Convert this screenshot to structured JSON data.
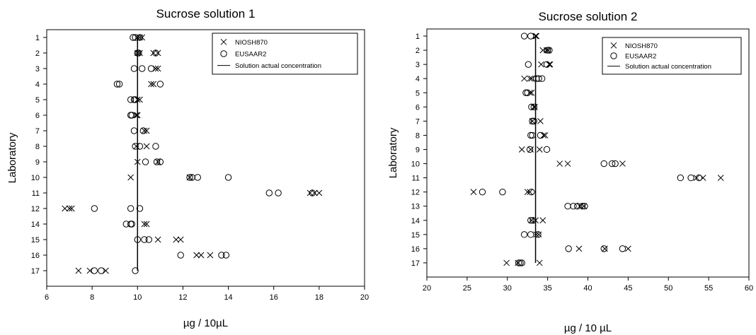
{
  "chart_data": [
    {
      "type": "scatter",
      "title": "Sucrose solution 1",
      "xlabel": "µg / 10µL",
      "ylabel": "Laboratory",
      "xlim": [
        6,
        20
      ],
      "xticks": [
        "6",
        "8",
        "10",
        "12",
        "14",
        "16",
        "18",
        "20"
      ],
      "categories": [
        "1",
        "2",
        "3",
        "4",
        "5",
        "6",
        "7",
        "8",
        "9",
        "10",
        "11",
        "12",
        "14",
        "15",
        "16",
        "17"
      ],
      "grid": false,
      "legend_position": "top-right",
      "reference": {
        "name": "Solution actual concentration",
        "value": 10.0
      },
      "series": [
        {
          "name": "NIOSH870",
          "marker": "x",
          "points": [
            [
              "1",
              10.0
            ],
            [
              "1",
              10.1
            ],
            [
              "1",
              10.2
            ],
            [
              "2",
              10.7
            ],
            [
              "2",
              10.9
            ],
            [
              "2",
              10.1
            ],
            [
              "2",
              10.0
            ],
            [
              "3",
              10.8
            ],
            [
              "3",
              10.9
            ],
            [
              "4",
              10.6
            ],
            [
              "4",
              10.7
            ],
            [
              "5",
              10.1
            ],
            [
              "5",
              10.0
            ],
            [
              "6",
              10.0
            ],
            [
              "6",
              9.95
            ],
            [
              "7",
              10.3
            ],
            [
              "7",
              10.4
            ],
            [
              "8",
              9.95
            ],
            [
              "8",
              10.4
            ],
            [
              "9",
              10.0
            ],
            [
              "9",
              10.9
            ],
            [
              "10",
              9.7
            ],
            [
              "10",
              12.3
            ],
            [
              "11",
              17.6
            ],
            [
              "11",
              17.8
            ],
            [
              "11",
              18.0
            ],
            [
              "12",
              6.8
            ],
            [
              "12",
              7.0
            ],
            [
              "12",
              7.1
            ],
            [
              "14",
              10.3
            ],
            [
              "14",
              10.4
            ],
            [
              "15",
              10.9
            ],
            [
              "15",
              11.7
            ],
            [
              "15",
              11.9
            ],
            [
              "16",
              12.6
            ],
            [
              "16",
              12.8
            ],
            [
              "16",
              13.2
            ],
            [
              "17",
              7.4
            ],
            [
              "17",
              7.9
            ],
            [
              "17",
              8.6
            ]
          ]
        },
        {
          "name": "EUSAAR2",
          "marker": "o",
          "points": [
            [
              "1",
              9.8
            ],
            [
              "1",
              9.9
            ],
            [
              "1",
              10.1
            ],
            [
              "2",
              10.0
            ],
            [
              "2",
              10.05
            ],
            [
              "2",
              10.8
            ],
            [
              "3",
              9.85
            ],
            [
              "3",
              10.2
            ],
            [
              "3",
              10.6
            ],
            [
              "4",
              9.1
            ],
            [
              "4",
              9.2
            ],
            [
              "4",
              11.0
            ],
            [
              "5",
              9.7
            ],
            [
              "5",
              9.85
            ],
            [
              "5",
              9.9
            ],
            [
              "6",
              9.7
            ],
            [
              "6",
              9.75
            ],
            [
              "7",
              9.85
            ],
            [
              "7",
              10.25
            ],
            [
              "8",
              9.9
            ],
            [
              "8",
              10.1
            ],
            [
              "8",
              10.8
            ],
            [
              "9",
              10.35
            ],
            [
              "9",
              10.85
            ],
            [
              "9",
              11.0
            ],
            [
              "10",
              12.3
            ],
            [
              "10",
              12.4
            ],
            [
              "10",
              12.65
            ],
            [
              "10",
              14.0
            ],
            [
              "11",
              15.8
            ],
            [
              "11",
              16.2
            ],
            [
              "11",
              17.7
            ],
            [
              "12",
              8.1
            ],
            [
              "12",
              9.7
            ],
            [
              "12",
              10.1
            ],
            [
              "14",
              9.5
            ],
            [
              "14",
              9.7
            ],
            [
              "14",
              9.75
            ],
            [
              "15",
              10.0
            ],
            [
              "15",
              10.3
            ],
            [
              "15",
              10.5
            ],
            [
              "16",
              11.9
            ],
            [
              "16",
              13.7
            ],
            [
              "16",
              13.9
            ],
            [
              "17",
              8.1
            ],
            [
              "17",
              8.4
            ],
            [
              "17",
              9.9
            ]
          ]
        }
      ]
    },
    {
      "type": "scatter",
      "title": "Sucrose solution 2",
      "xlabel": "µg / 10 µL",
      "ylabel": "Laboratory",
      "xlim": [
        20,
        60
      ],
      "xticks": [
        "20",
        "25",
        "30",
        "35",
        "40",
        "45",
        "50",
        "55",
        "60"
      ],
      "categories": [
        "1",
        "2",
        "3",
        "4",
        "5",
        "6",
        "7",
        "8",
        "9",
        "10",
        "11",
        "12",
        "13",
        "14",
        "15",
        "16",
        "17"
      ],
      "grid": false,
      "legend_position": "top-right",
      "reference": {
        "name": "Solution actual concentration",
        "value": 33.5
      },
      "series": [
        {
          "name": "NIOSH870",
          "marker": "x",
          "points": [
            [
              "1",
              33.5
            ],
            [
              "1",
              33.6
            ],
            [
              "2",
              34.4
            ],
            [
              "2",
              34.9
            ],
            [
              "2",
              35.1
            ],
            [
              "3",
              34.2
            ],
            [
              "3",
              35.2
            ],
            [
              "3",
              35.3
            ],
            [
              "4",
              32.1
            ],
            [
              "4",
              32.8
            ],
            [
              "4",
              33.0
            ],
            [
              "5",
              32.8
            ],
            [
              "5",
              33.0
            ],
            [
              "6",
              33.3
            ],
            [
              "6",
              33.4
            ],
            [
              "7",
              33.1
            ],
            [
              "7",
              34.1
            ],
            [
              "8",
              34.5
            ],
            [
              "8",
              34.7
            ],
            [
              "9",
              31.8
            ],
            [
              "9",
              32.9
            ],
            [
              "9",
              34.0
            ],
            [
              "10",
              36.5
            ],
            [
              "10",
              37.5
            ],
            [
              "10",
              44.3
            ],
            [
              "11",
              53.5
            ],
            [
              "11",
              54.3
            ],
            [
              "11",
              56.5
            ],
            [
              "12",
              25.8
            ],
            [
              "12",
              32.5
            ],
            [
              "12",
              32.8
            ],
            [
              "13",
              39.0
            ],
            [
              "13",
              39.5
            ],
            [
              "14",
              33.0
            ],
            [
              "14",
              33.5
            ],
            [
              "14",
              34.4
            ],
            [
              "15",
              33.6
            ],
            [
              "15",
              33.9
            ],
            [
              "16",
              38.9
            ],
            [
              "16",
              42.1
            ],
            [
              "16",
              45.0
            ],
            [
              "17",
              29.9
            ],
            [
              "17",
              31.3
            ],
            [
              "17",
              34.0
            ]
          ]
        },
        {
          "name": "EUSAAR2",
          "marker": "o",
          "points": [
            [
              "1",
              32.1
            ],
            [
              "1",
              32.9
            ],
            [
              "2",
              35.0
            ],
            [
              "2",
              35.2
            ],
            [
              "3",
              32.6
            ],
            [
              "3",
              34.9
            ],
            [
              "4",
              33.6
            ],
            [
              "4",
              33.9
            ],
            [
              "4",
              34.3
            ],
            [
              "5",
              32.3
            ],
            [
              "5",
              32.5
            ],
            [
              "6",
              33.0
            ],
            [
              "6",
              33.3
            ],
            [
              "7",
              33.1
            ],
            [
              "7",
              33.3
            ],
            [
              "8",
              32.9
            ],
            [
              "8",
              33.1
            ],
            [
              "8",
              34.1
            ],
            [
              "9",
              32.8
            ],
            [
              "9",
              34.9
            ],
            [
              "10",
              42.0
            ],
            [
              "10",
              43.0
            ],
            [
              "10",
              43.4
            ],
            [
              "11",
              51.5
            ],
            [
              "11",
              52.8
            ],
            [
              "11",
              53.8
            ],
            [
              "12",
              26.9
            ],
            [
              "12",
              29.4
            ],
            [
              "12",
              33.0
            ],
            [
              "13",
              37.5
            ],
            [
              "13",
              38.2
            ],
            [
              "13",
              38.7
            ],
            [
              "13",
              39.3
            ],
            [
              "13",
              39.6
            ],
            [
              "14",
              32.9
            ],
            [
              "14",
              33.2
            ],
            [
              "15",
              32.1
            ],
            [
              "15",
              32.9
            ],
            [
              "15",
              33.8
            ],
            [
              "16",
              37.6
            ],
            [
              "16",
              42.0
            ],
            [
              "16",
              44.3
            ],
            [
              "17",
              31.4
            ],
            [
              "17",
              31.6
            ],
            [
              "17",
              31.8
            ]
          ]
        }
      ]
    }
  ]
}
